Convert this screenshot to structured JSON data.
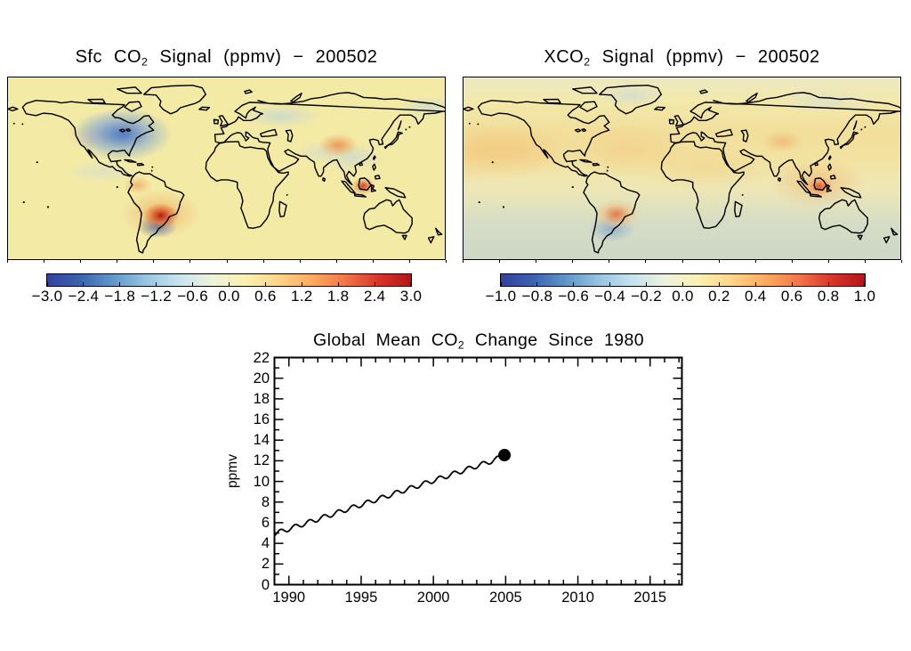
{
  "page": {
    "background": "#ffffff"
  },
  "colors": {
    "frame": "#000000",
    "text": "#000000",
    "map_base_left": "#f3eaa6",
    "map_base_right": "#f2e9ab",
    "line_color": "#000000",
    "colorbar_gradient": [
      "#33419d",
      "#3c64ae",
      "#6198cb",
      "#98c6e2",
      "#c8e4ef",
      "#eef3db",
      "#faf0b2",
      "#fdd488",
      "#fcab60",
      "#f3764a",
      "#d93529",
      "#b2141b"
    ]
  },
  "left_panel": {
    "title": {
      "prefix": "Sfc CO",
      "sub": "2",
      "suffix": " Signal (ppmv) − 200502"
    },
    "colorbar_ticks": [
      "−3.0",
      "−2.4",
      "−1.8",
      "−1.2",
      "−0.6",
      "0.0",
      "0.6",
      "1.2",
      "1.8",
      "2.4",
      "3.0"
    ]
  },
  "right_panel": {
    "title": {
      "prefix": "XCO",
      "sub": "2",
      "suffix": " Signal (ppmv) − 200502"
    },
    "colorbar_ticks": [
      "−1.0",
      "−0.8",
      "−0.6",
      "−0.4",
      "−0.2",
      "0.0",
      "0.2",
      "0.4",
      "0.6",
      "0.8",
      "1.0"
    ]
  },
  "bottom_chart": {
    "title": {
      "prefix": "Global Mean CO",
      "sub": "2",
      "suffix": " Change Since 1980"
    },
    "ylabel": "ppmv",
    "xtick_labels": [
      "1990",
      "1995",
      "2000",
      "2005",
      "2010",
      "2015"
    ],
    "ytick_labels": [
      "0",
      "2",
      "4",
      "6",
      "8",
      "10",
      "12",
      "14",
      "16",
      "18",
      "20",
      "22"
    ]
  },
  "chart_data": [
    {
      "type": "heatmap",
      "title": "Sfc CO2 Signal (ppmv) - 200502",
      "units": "ppmv",
      "projection": "equirectangular world map, approx 90N to 60S",
      "colorbar_range": [
        -3.0,
        3.0
      ],
      "colorbar_ticks": [
        -3.0,
        -2.4,
        -1.8,
        -1.2,
        -0.6,
        0.0,
        0.6,
        1.2,
        1.8,
        2.4,
        3.0
      ],
      "background_value": 0.15,
      "anomalies": [
        {
          "region": "eastern North America / Great Lakes",
          "value": -1.6
        },
        {
          "region": "western United States",
          "value": 0.5
        },
        {
          "region": "northwestern South America",
          "value": 0.8
        },
        {
          "region": "southern Brazil",
          "value": 3.0
        },
        {
          "region": "Uruguay / northeastern Argentina",
          "value": -1.5
        },
        {
          "region": "western Russia",
          "value": -0.4
        },
        {
          "region": "central China",
          "value": 1.0
        },
        {
          "region": "Southeast Asia",
          "value": -0.4
        },
        {
          "region": "Borneo / Indonesia",
          "value": 2.4
        }
      ]
    },
    {
      "type": "heatmap",
      "title": "XCO2 Signal (ppmv) - 200502",
      "units": "ppmv",
      "projection": "equirectangular world map, approx 90N to 60S",
      "colorbar_range": [
        -1.0,
        1.0
      ],
      "colorbar_ticks": [
        -1.0,
        -0.8,
        -0.6,
        -0.4,
        -0.2,
        0.0,
        0.2,
        0.4,
        0.6,
        0.8,
        1.0
      ],
      "background_value": 0.1,
      "anomalies": [
        {
          "region": "northern-hemisphere oceans (broad warm band)",
          "value": 0.2
        },
        {
          "region": "central Asia",
          "value": 0.3
        },
        {
          "region": "southern Brazil",
          "value": 0.8
        },
        {
          "region": "Uruguay / northeastern Argentina",
          "value": -0.4
        },
        {
          "region": "Borneo / Indonesia",
          "value": 0.9
        },
        {
          "region": "southern-hemisphere high latitudes",
          "value": -0.2
        },
        {
          "region": "Greenland / Arctic",
          "value": -0.15
        }
      ]
    },
    {
      "type": "line",
      "title": "Global Mean CO2 Change Since 1980",
      "xlabel": "",
      "ylabel": "ppmv",
      "xlim": [
        1989.0,
        2017.2
      ],
      "ylim": [
        0,
        22
      ],
      "xticks": [
        1990,
        1995,
        2000,
        2005,
        2010,
        2015
      ],
      "xticks_minor_step": 1,
      "yticks": [
        0,
        2,
        4,
        6,
        8,
        10,
        12,
        14,
        16,
        18,
        20,
        22
      ],
      "yticks_minor_step": 1,
      "grid": false,
      "legend": "none",
      "series": [
        {
          "name": "Global mean CO2 change since 1980",
          "x_start": 1989.0,
          "x_end": 2004.92,
          "annual_values_1989_to_2005": [
            4.93,
            5.4,
            5.87,
            6.34,
            6.81,
            7.28,
            7.74,
            8.21,
            8.68,
            9.15,
            9.61,
            10.08,
            10.55,
            11.02,
            11.49,
            11.95,
            12.55
          ],
          "seasonal_amplitude": 0.22,
          "sampling": "monthly, wavy seasonal cycle superimposed on rising trend"
        }
      ],
      "end_marker": {
        "x": 2004.92,
        "y": 12.55,
        "style": "filled-circle",
        "color": "#000000"
      }
    }
  ]
}
